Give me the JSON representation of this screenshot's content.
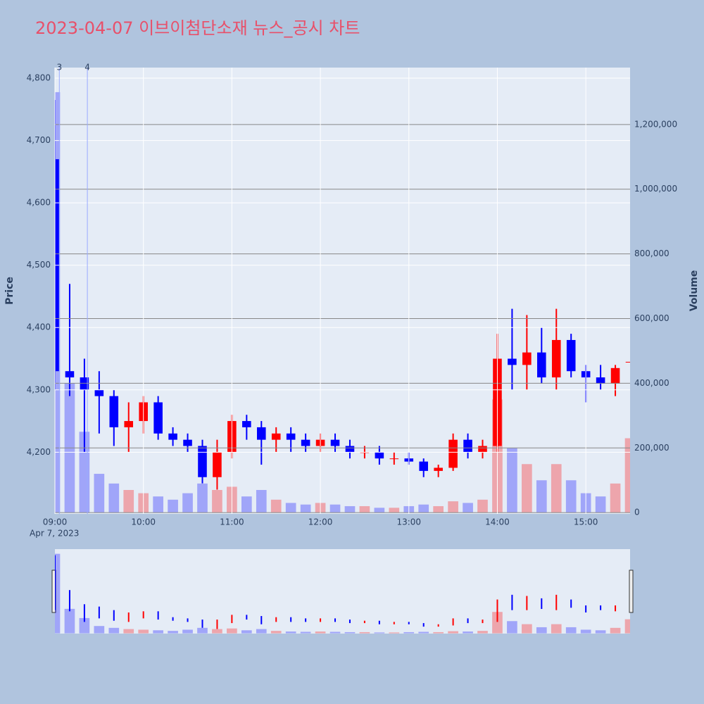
{
  "chart_data": {
    "type": "candlestick",
    "title": "2023-04-07 이브이첨단소재 뉴스_공시 차트",
    "y_label": "Price",
    "y2_label": "Volume",
    "x_date_label": "Apr 7, 2023",
    "increasing_color": "#ff0000",
    "decreasing_color": "#0000ff",
    "x": [
      "2023-04-07 09:00",
      "2023-04-07 09:10",
      "2023-04-07 09:20",
      "2023-04-07 09:30",
      "2023-04-07 09:40",
      "2023-04-07 09:50",
      "2023-04-07 10:00",
      "2023-04-07 10:10",
      "2023-04-07 10:20",
      "2023-04-07 10:30",
      "2023-04-07 10:40",
      "2023-04-07 10:50",
      "2023-04-07 11:00",
      "2023-04-07 11:10",
      "2023-04-07 11:20",
      "2023-04-07 11:30",
      "2023-04-07 11:40",
      "2023-04-07 11:50",
      "2023-04-07 12:00",
      "2023-04-07 12:10",
      "2023-04-07 12:20",
      "2023-04-07 12:30",
      "2023-04-07 12:40",
      "2023-04-07 12:50",
      "2023-04-07 13:00",
      "2023-04-07 13:10",
      "2023-04-07 13:20",
      "2023-04-07 13:30",
      "2023-04-07 13:40",
      "2023-04-07 13:50",
      "2023-04-07 14:00",
      "2023-04-07 14:10",
      "2023-04-07 14:20",
      "2023-04-07 14:30",
      "2023-04-07 14:40",
      "2023-04-07 14:50",
      "2023-04-07 15:00",
      "2023-04-07 15:10",
      "2023-04-07 15:20",
      "2023-04-07 15:30"
    ],
    "open": [
      4670,
      4330,
      4320,
      4300,
      4290,
      4240,
      4250,
      4280,
      4230,
      4220,
      4210,
      4160,
      4200,
      4250,
      4240,
      4220,
      4230,
      4220,
      4210,
      4220,
      4210,
      4200,
      4200,
      4190,
      4190,
      4185,
      4170,
      4175,
      4220,
      4200,
      4210,
      4350,
      4340,
      4360,
      4320,
      4380,
      4330,
      4320,
      4310,
      4345
    ],
    "high": [
      4765,
      4470,
      4350,
      4330,
      4300,
      4280,
      4290,
      4290,
      4240,
      4230,
      4220,
      4220,
      4260,
      4260,
      4250,
      4240,
      4240,
      4230,
      4230,
      4230,
      4220,
      4210,
      4210,
      4200,
      4200,
      4190,
      4180,
      4230,
      4230,
      4220,
      4390,
      4430,
      4420,
      4400,
      4430,
      4390,
      4340,
      4340,
      4340,
      4345
    ],
    "low": [
      4300,
      4290,
      4200,
      4230,
      4210,
      4200,
      4230,
      4220,
      4210,
      4200,
      4150,
      4140,
      4190,
      4220,
      4180,
      4200,
      4200,
      4200,
      4200,
      4200,
      4190,
      4190,
      4180,
      4180,
      4180,
      4160,
      4160,
      4170,
      4190,
      4190,
      4200,
      4300,
      4300,
      4310,
      4300,
      4320,
      4280,
      4300,
      4290,
      4345
    ],
    "close": [
      4330,
      4320,
      4300,
      4290,
      4240,
      4250,
      4280,
      4230,
      4220,
      4210,
      4160,
      4200,
      4250,
      4240,
      4220,
      4230,
      4220,
      4210,
      4220,
      4210,
      4200,
      4200,
      4190,
      4190,
      4185,
      4170,
      4175,
      4220,
      4200,
      4210,
      4350,
      4340,
      4360,
      4320,
      4380,
      4330,
      4320,
      4310,
      4335,
      4345
    ],
    "volume": [
      1300000,
      400000,
      250000,
      120000,
      90000,
      70000,
      60000,
      50000,
      40000,
      60000,
      90000,
      70000,
      80000,
      50000,
      70000,
      40000,
      30000,
      25000,
      30000,
      25000,
      20000,
      20000,
      15000,
      15000,
      20000,
      25000,
      20000,
      35000,
      30000,
      40000,
      350000,
      200000,
      150000,
      100000,
      150000,
      100000,
      60000,
      50000,
      90000,
      230000
    ],
    "xlim": [
      "2023-04-07 09:00",
      "2023-04-07 15:30"
    ],
    "xticks": [
      {
        "value": "2023-04-07 09:00",
        "label": "09:00"
      },
      {
        "value": "2023-04-07 10:00",
        "label": "10:00"
      },
      {
        "value": "2023-04-07 11:00",
        "label": "11:00"
      },
      {
        "value": "2023-04-07 12:00",
        "label": "12:00"
      },
      {
        "value": "2023-04-07 13:00",
        "label": "13:00"
      },
      {
        "value": "2023-04-07 14:00",
        "label": "14:00"
      },
      {
        "value": "2023-04-07 15:00",
        "label": "15:00"
      }
    ],
    "ylim": [
      4101,
      4817
    ],
    "yticks": [
      {
        "value": 4200,
        "label": "4,200"
      },
      {
        "value": 4300,
        "label": "4,300"
      },
      {
        "value": 4400,
        "label": "4,400"
      },
      {
        "value": 4500,
        "label": "4,500"
      },
      {
        "value": 4600,
        "label": "4,600"
      },
      {
        "value": 4700,
        "label": "4,700"
      },
      {
        "value": 4800,
        "label": "4,800"
      }
    ],
    "y2lim": [
      -4000,
      1376000
    ],
    "y2ticks": [
      0,
      {
        "value": 200000,
        "label": "200,000"
      },
      {
        "value": 400000,
        "label": "400,000"
      },
      {
        "value": 600000,
        "label": "600,000"
      },
      {
        "value": 800000,
        "label": "800,000"
      },
      {
        "value": 1000000,
        "label": "1,000,000"
      },
      {
        "value": 1200000,
        "label": "1,200,000"
      }
    ],
    "annotations": [
      {
        "x": "2023-04-07 09:03",
        "text": "3"
      },
      {
        "x": "2023-04-07 09:22",
        "text": "4"
      }
    ]
  }
}
